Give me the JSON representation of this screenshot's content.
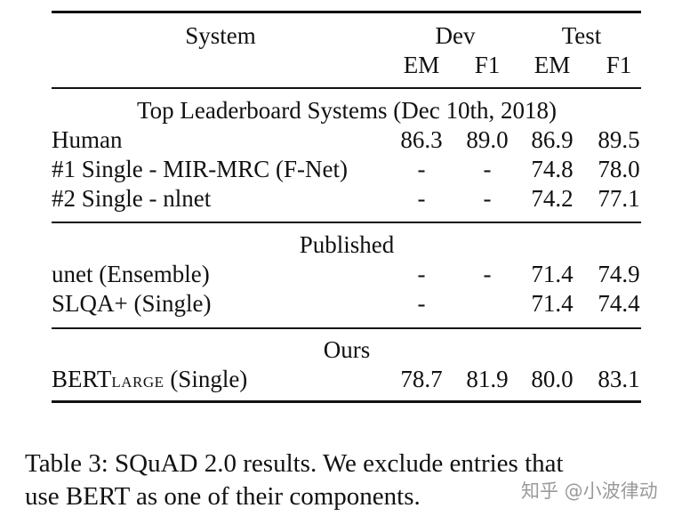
{
  "table": {
    "header": {
      "system": "System",
      "dev": "Dev",
      "test": "Test",
      "em": "EM",
      "f1": "F1"
    },
    "sections": [
      {
        "title": "Top Leaderboard Systems (Dec 10th, 2018)",
        "rows": [
          {
            "system": "Human",
            "dev_em": "86.3",
            "dev_f1": "89.0",
            "test_em": "86.9",
            "test_f1": "89.5"
          },
          {
            "system": "#1 Single - MIR-MRC (F-Net)",
            "dev_em": "-",
            "dev_f1": "-",
            "test_em": "74.8",
            "test_f1": "78.0"
          },
          {
            "system": "#2 Single - nlnet",
            "dev_em": "-",
            "dev_f1": "-",
            "test_em": "74.2",
            "test_f1": "77.1"
          }
        ]
      },
      {
        "title": "Published",
        "rows": [
          {
            "system": "unet (Ensemble)",
            "dev_em": "-",
            "dev_f1": "-",
            "test_em": "71.4",
            "test_f1": "74.9"
          },
          {
            "system": "SLQA+ (Single)",
            "dev_em": "-",
            "dev_f1": "",
            "test_em": "71.4",
            "test_f1": "74.4"
          }
        ]
      },
      {
        "title": "Ours",
        "rows": [
          {
            "system_main": "BERT",
            "system_sub": "LARGE",
            "system_rest": " (Single)",
            "dev_em": "78.7",
            "dev_f1": "81.9",
            "test_em": "80.0",
            "test_f1": "83.1"
          }
        ]
      }
    ]
  },
  "caption": {
    "line1": "Table 3:  SQuAD 2.0 results.  We exclude entries that",
    "line2": "use BERT as one of their components."
  },
  "watermark": "知乎 @小波律动"
}
